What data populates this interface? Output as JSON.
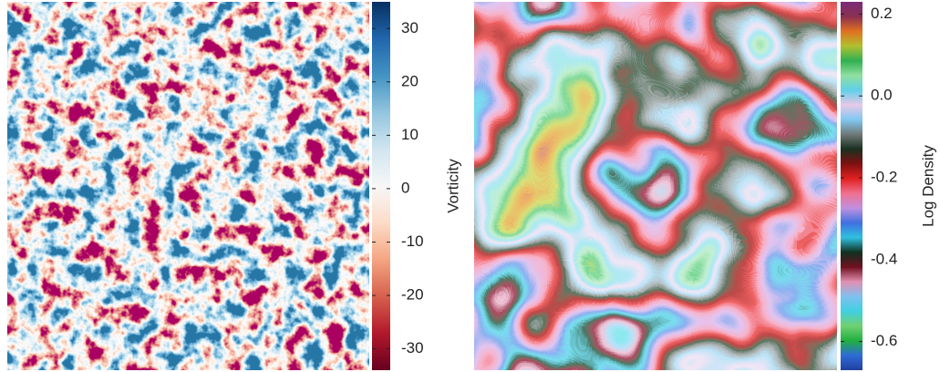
{
  "chart_data": [
    {
      "type": "heatmap",
      "colorbar_label": "Vorticity",
      "clim": [
        -34,
        35
      ],
      "cticks": [
        30,
        20,
        10,
        0,
        -10,
        -20,
        -30
      ],
      "colormap": [
        "#67001f",
        "#b2182b",
        "#d6604d",
        "#f4a582",
        "#fddbc7",
        "#f7f7f7",
        "#d1e5f0",
        "#92c5de",
        "#4393c3",
        "#2166ac",
        "#053061"
      ]
    },
    {
      "type": "heatmap",
      "colorbar_label": "Log Density",
      "clim": [
        -0.67,
        0.23
      ],
      "cticks": [
        0.2,
        {
          "value": 0,
          "label": "0.0"
        },
        -0.2,
        -0.4,
        -0.6
      ],
      "colormap": [
        "#2040a0",
        "#2f6bd6",
        "#20b040",
        "#70d070",
        "#40d0e0",
        "#80c0f0",
        "#e090b0",
        "#701020",
        "#103020",
        "#30c0e0",
        "#4070e0",
        "#c090e0",
        "#f07090",
        "#e02020",
        "#801010",
        "#1a3020",
        "#707878",
        "#80c8f0",
        "#e8c8e8",
        "#60d0e8",
        "#90e0a0",
        "#30b050",
        "#b0c030",
        "#e07020",
        "#8a3050",
        "#7a2a7a"
      ]
    }
  ]
}
